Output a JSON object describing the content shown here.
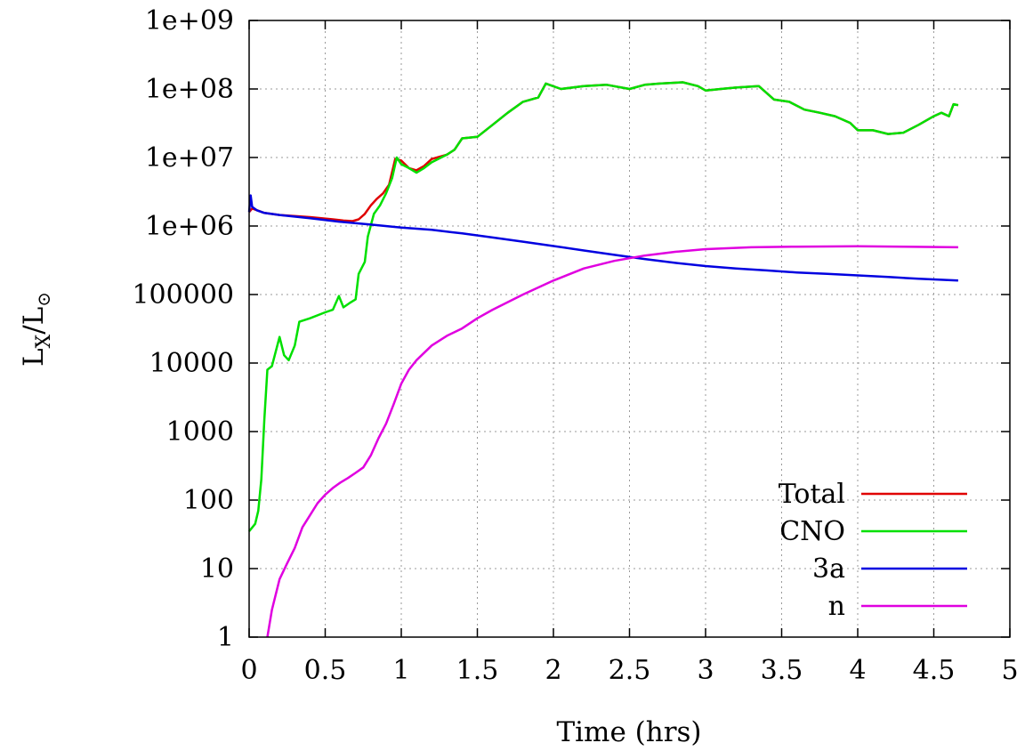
{
  "chart_data": {
    "type": "line",
    "xlabel": "Time (hrs)",
    "ylabel_main": "L",
    "ylabel_sub": "X",
    "ylabel_mid": "/L",
    "ylabel_sun": "⊙",
    "xlim": [
      0,
      5
    ],
    "ylim": [
      1,
      1000000000
    ],
    "yscale": "log",
    "grid": true,
    "legend_position": "bottom-right",
    "x_ticks": [
      "0",
      "0.5",
      "1",
      "1.5",
      "2",
      "2.5",
      "3",
      "3.5",
      "4",
      "4.5",
      "5"
    ],
    "x_tick_values": [
      0,
      0.5,
      1,
      1.5,
      2,
      2.5,
      3,
      3.5,
      4,
      4.5,
      5
    ],
    "y_ticks": [
      "1",
      "10",
      "100",
      "1000",
      "10000",
      "100000",
      "1e+06",
      "1e+07",
      "1e+08",
      "1e+09"
    ],
    "y_tick_values": [
      1,
      10,
      100,
      1000,
      10000,
      100000,
      1000000,
      10000000,
      100000000,
      1000000000
    ],
    "series": [
      {
        "name": "Total",
        "color": "#e00000",
        "points": [
          [
            0.0,
            1600000
          ],
          [
            0.02,
            1800000
          ],
          [
            0.1,
            1550000
          ],
          [
            0.2,
            1450000
          ],
          [
            0.4,
            1350000
          ],
          [
            0.55,
            1250000
          ],
          [
            0.62,
            1200000
          ],
          [
            0.68,
            1180000
          ],
          [
            0.72,
            1250000
          ],
          [
            0.76,
            1500000
          ],
          [
            0.8,
            2000000
          ],
          [
            0.84,
            2500000
          ],
          [
            0.88,
            3000000
          ],
          [
            0.92,
            4000000
          ],
          [
            0.96,
            9500000
          ],
          [
            1.0,
            9000000
          ],
          [
            1.05,
            7000000
          ],
          [
            1.1,
            6500000
          ],
          [
            1.15,
            7500000
          ],
          [
            1.2,
            9500000
          ],
          [
            1.3,
            11000000
          ],
          [
            1.35,
            13000000
          ],
          [
            1.4,
            19000000
          ],
          [
            1.5,
            20000000
          ],
          [
            1.6,
            30000000
          ],
          [
            1.7,
            45000000
          ],
          [
            1.8,
            65000000
          ],
          [
            1.9,
            75000000
          ],
          [
            1.95,
            120000000
          ],
          [
            2.05,
            100000000
          ],
          [
            2.2,
            110000000
          ],
          [
            2.35,
            115000000
          ],
          [
            2.5,
            100000000
          ],
          [
            2.6,
            115000000
          ],
          [
            2.7,
            120000000
          ],
          [
            2.85,
            125000000
          ],
          [
            2.95,
            110000000
          ],
          [
            3.0,
            95000000
          ],
          [
            3.1,
            100000000
          ],
          [
            3.2,
            105000000
          ],
          [
            3.35,
            110000000
          ],
          [
            3.45,
            70000000
          ],
          [
            3.55,
            65000000
          ],
          [
            3.65,
            50000000
          ],
          [
            3.75,
            45000000
          ],
          [
            3.85,
            40000000
          ],
          [
            3.95,
            32000000
          ],
          [
            4.0,
            25000000
          ],
          [
            4.1,
            25000000
          ],
          [
            4.2,
            22000000
          ],
          [
            4.3,
            23000000
          ],
          [
            4.4,
            30000000
          ],
          [
            4.5,
            40000000
          ],
          [
            4.55,
            45000000
          ],
          [
            4.6,
            40000000
          ],
          [
            4.63,
            60000000
          ],
          [
            4.66,
            58000000
          ]
        ]
      },
      {
        "name": "CNO",
        "color": "#00e000",
        "points": [
          [
            0.0,
            35
          ],
          [
            0.04,
            45
          ],
          [
            0.06,
            70
          ],
          [
            0.08,
            200
          ],
          [
            0.1,
            1500
          ],
          [
            0.12,
            8000
          ],
          [
            0.15,
            9000
          ],
          [
            0.2,
            24000
          ],
          [
            0.23,
            13000
          ],
          [
            0.26,
            11000
          ],
          [
            0.3,
            18000
          ],
          [
            0.33,
            40000
          ],
          [
            0.4,
            45000
          ],
          [
            0.5,
            55000
          ],
          [
            0.55,
            60000
          ],
          [
            0.59,
            95000
          ],
          [
            0.62,
            65000
          ],
          [
            0.66,
            75000
          ],
          [
            0.7,
            85000
          ],
          [
            0.72,
            200000
          ],
          [
            0.76,
            300000
          ],
          [
            0.78,
            700000
          ],
          [
            0.82,
            1500000
          ],
          [
            0.86,
            2000000
          ],
          [
            0.9,
            3000000
          ],
          [
            0.94,
            5000000
          ],
          [
            0.97,
            10000000
          ],
          [
            1.0,
            8000000
          ],
          [
            1.05,
            7000000
          ],
          [
            1.1,
            6000000
          ],
          [
            1.15,
            7000000
          ],
          [
            1.2,
            8500000
          ],
          [
            1.3,
            11000000
          ],
          [
            1.35,
            13000000
          ],
          [
            1.4,
            19000000
          ],
          [
            1.5,
            20000000
          ],
          [
            1.6,
            30000000
          ],
          [
            1.7,
            45000000
          ],
          [
            1.8,
            65000000
          ],
          [
            1.9,
            75000000
          ],
          [
            1.95,
            120000000
          ],
          [
            2.05,
            100000000
          ],
          [
            2.2,
            110000000
          ],
          [
            2.35,
            115000000
          ],
          [
            2.5,
            100000000
          ],
          [
            2.6,
            115000000
          ],
          [
            2.7,
            120000000
          ],
          [
            2.85,
            125000000
          ],
          [
            2.95,
            110000000
          ],
          [
            3.0,
            95000000
          ],
          [
            3.1,
            100000000
          ],
          [
            3.2,
            105000000
          ],
          [
            3.35,
            110000000
          ],
          [
            3.45,
            70000000
          ],
          [
            3.55,
            65000000
          ],
          [
            3.65,
            50000000
          ],
          [
            3.75,
            45000000
          ],
          [
            3.85,
            40000000
          ],
          [
            3.95,
            32000000
          ],
          [
            4.0,
            25000000
          ],
          [
            4.1,
            25000000
          ],
          [
            4.2,
            22000000
          ],
          [
            4.3,
            23000000
          ],
          [
            4.4,
            30000000
          ],
          [
            4.5,
            40000000
          ],
          [
            4.55,
            45000000
          ],
          [
            4.6,
            40000000
          ],
          [
            4.63,
            60000000
          ],
          [
            4.66,
            58000000
          ]
        ]
      },
      {
        "name": "3a",
        "color": "#0000e0",
        "points": [
          [
            0.0,
            1600000
          ],
          [
            0.01,
            2800000
          ],
          [
            0.02,
            1900000
          ],
          [
            0.05,
            1700000
          ],
          [
            0.1,
            1550000
          ],
          [
            0.2,
            1450000
          ],
          [
            0.4,
            1300000
          ],
          [
            0.6,
            1150000
          ],
          [
            0.8,
            1050000
          ],
          [
            1.0,
            950000
          ],
          [
            1.2,
            880000
          ],
          [
            1.4,
            780000
          ],
          [
            1.6,
            680000
          ],
          [
            1.8,
            590000
          ],
          [
            2.0,
            510000
          ],
          [
            2.2,
            440000
          ],
          [
            2.4,
            380000
          ],
          [
            2.6,
            330000
          ],
          [
            2.8,
            290000
          ],
          [
            3.0,
            260000
          ],
          [
            3.2,
            240000
          ],
          [
            3.4,
            225000
          ],
          [
            3.6,
            210000
          ],
          [
            3.8,
            200000
          ],
          [
            4.0,
            190000
          ],
          [
            4.2,
            180000
          ],
          [
            4.4,
            170000
          ],
          [
            4.66,
            160000
          ]
        ]
      },
      {
        "name": "n",
        "color": "#e000e0",
        "points": [
          [
            0.12,
            1
          ],
          [
            0.15,
            2.5
          ],
          [
            0.2,
            7
          ],
          [
            0.25,
            12
          ],
          [
            0.3,
            20
          ],
          [
            0.35,
            40
          ],
          [
            0.4,
            60
          ],
          [
            0.45,
            90
          ],
          [
            0.5,
            120
          ],
          [
            0.55,
            150
          ],
          [
            0.6,
            180
          ],
          [
            0.65,
            210
          ],
          [
            0.7,
            250
          ],
          [
            0.75,
            300
          ],
          [
            0.8,
            450
          ],
          [
            0.85,
            800
          ],
          [
            0.9,
            1300
          ],
          [
            0.95,
            2500
          ],
          [
            1.0,
            5000
          ],
          [
            1.05,
            8000
          ],
          [
            1.1,
            11000
          ],
          [
            1.2,
            18000
          ],
          [
            1.3,
            25000
          ],
          [
            1.4,
            32000
          ],
          [
            1.5,
            45000
          ],
          [
            1.6,
            60000
          ],
          [
            1.8,
            100000
          ],
          [
            2.0,
            160000
          ],
          [
            2.2,
            240000
          ],
          [
            2.4,
            310000
          ],
          [
            2.6,
            370000
          ],
          [
            2.8,
            420000
          ],
          [
            3.0,
            460000
          ],
          [
            3.3,
            490000
          ],
          [
            3.6,
            500000
          ],
          [
            4.0,
            505000
          ],
          [
            4.3,
            500000
          ],
          [
            4.66,
            490000
          ]
        ]
      }
    ]
  }
}
